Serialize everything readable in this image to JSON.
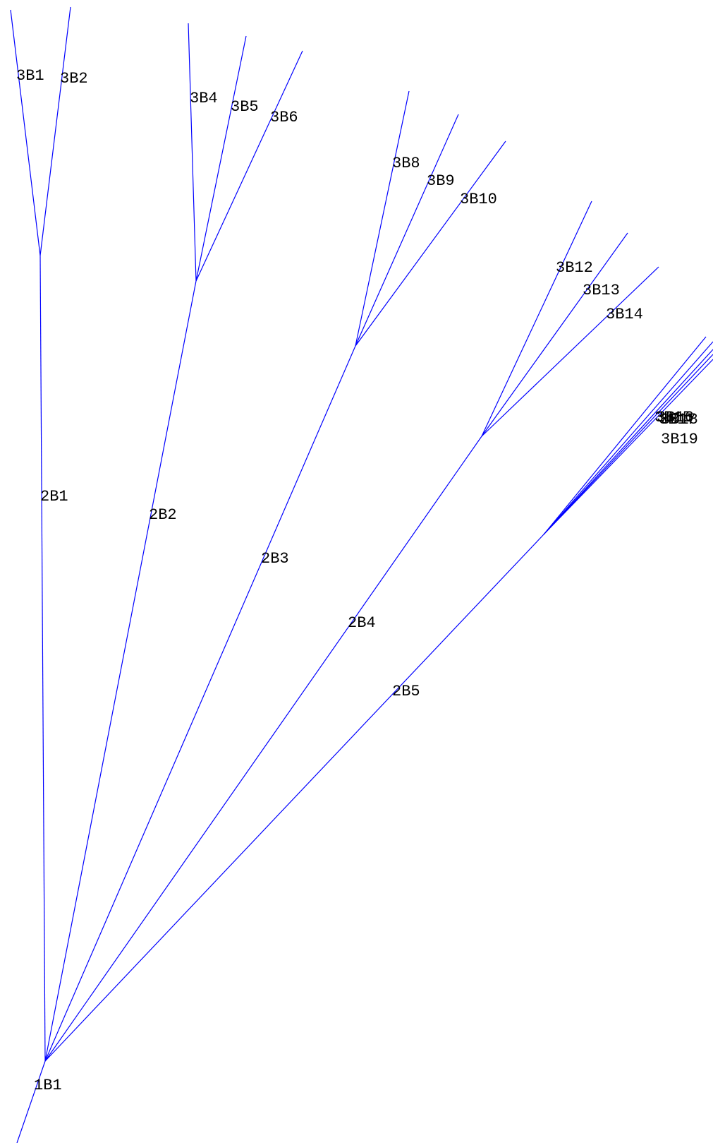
{
  "diagram": {
    "type": "branch-tree",
    "line_color": "#0000ff",
    "label_color": "#000000",
    "root": "1B1",
    "branches": [
      {
        "id": "1B1",
        "label": "1B1",
        "parent": null
      },
      {
        "id": "2B1",
        "label": "2B1",
        "parent": "1B1"
      },
      {
        "id": "2B2",
        "label": "2B2",
        "parent": "1B1"
      },
      {
        "id": "2B3",
        "label": "2B3",
        "parent": "1B1"
      },
      {
        "id": "2B4",
        "label": "2B4",
        "parent": "1B1"
      },
      {
        "id": "2B5",
        "label": "2B5",
        "parent": "1B1"
      },
      {
        "id": "3B1",
        "label": "3B1",
        "parent": "2B1"
      },
      {
        "id": "3B2",
        "label": "3B2",
        "parent": "2B1"
      },
      {
        "id": "3B4",
        "label": "3B4",
        "parent": "2B2"
      },
      {
        "id": "3B5",
        "label": "3B5",
        "parent": "2B2"
      },
      {
        "id": "3B6",
        "label": "3B6",
        "parent": "2B2"
      },
      {
        "id": "3B8",
        "label": "3B8",
        "parent": "2B3"
      },
      {
        "id": "3B9",
        "label": "3B9",
        "parent": "2B3"
      },
      {
        "id": "3B10",
        "label": "3B10",
        "parent": "2B3"
      },
      {
        "id": "3B12",
        "label": "3B12",
        "parent": "2B4"
      },
      {
        "id": "3B13",
        "label": "3B13",
        "parent": "2B4"
      },
      {
        "id": "3B14",
        "label": "3B14",
        "parent": "2B4"
      },
      {
        "id": "3B15",
        "label": "3B15",
        "parent": "2B5"
      },
      {
        "id": "3B16",
        "label": "3B16",
        "parent": "2B5"
      },
      {
        "id": "3B17",
        "label": "3B17",
        "parent": "2B5"
      },
      {
        "id": "3B18",
        "label": "3B18",
        "parent": "2B5"
      },
      {
        "id": "3B19",
        "label": "3B19",
        "parent": "2B5"
      }
    ]
  }
}
